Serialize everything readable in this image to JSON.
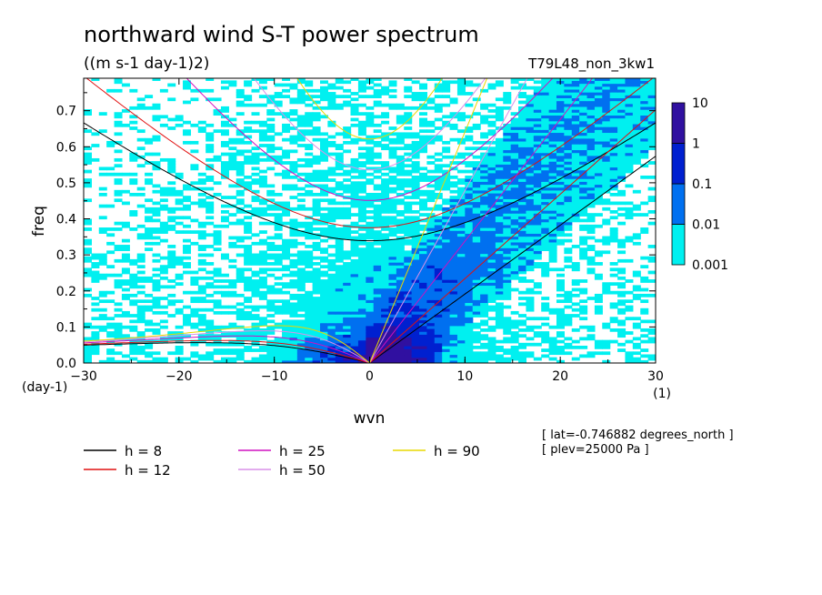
{
  "chart_data": {
    "type": "heatmap",
    "title": "northward wind S-T power spectrum",
    "subtitle": "((m s-1 day-1)2)",
    "run_label": "T79L48_non_3kw1",
    "xlabel": "wvn",
    "ylabel": "freq",
    "x_unit": "(1)",
    "y_unit": "(day-1)",
    "xlim": [
      -30,
      30
    ],
    "ylim": [
      0,
      0.79
    ],
    "x_ticks": [
      -30,
      -20,
      -10,
      0,
      10,
      20,
      30
    ],
    "y_ticks": [
      0.0,
      0.1,
      0.2,
      0.3,
      0.4,
      0.5,
      0.6,
      0.7
    ],
    "x_tick_labels": [
      "-30",
      "-20",
      "-10",
      "0",
      "10",
      "20",
      "30"
    ],
    "y_tick_labels": [
      "0.0",
      "0.1",
      "0.2",
      "0.3",
      "0.4",
      "0.5",
      "0.6",
      "0.7"
    ],
    "colorbar": {
      "levels": [
        "0.001",
        "0.01",
        "0.1",
        "1",
        "10"
      ],
      "colors": [
        "#00f0f0",
        "#0070f0",
        "#0020d0",
        "#3010a0"
      ]
    },
    "contour_lines": [
      {
        "label": "h =  8",
        "h": 8,
        "color": "#000000"
      },
      {
        "label": "h = 12",
        "h": 12,
        "color": "#e01010"
      },
      {
        "label": "h = 25",
        "h": 25,
        "color": "#d010c0"
      },
      {
        "label": "h = 50",
        "h": 50,
        "color": "#d890e8"
      },
      {
        "label": "h = 90",
        "h": 90,
        "color": "#e8d800"
      }
    ],
    "annotation": [
      "[ lat=-0.746882 degrees_north ]",
      "[ plev=25000 Pa ]"
    ]
  }
}
